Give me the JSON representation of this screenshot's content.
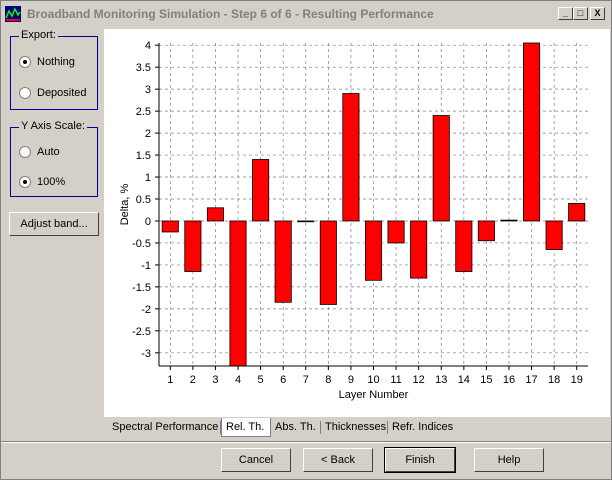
{
  "window": {
    "title": "Broadband Monitoring Simulation - Step 6 of 6 - Resulting Performance",
    "minimize": "_",
    "maximize": "□",
    "close": "X"
  },
  "export_group": {
    "title": "Export:",
    "options": [
      {
        "label": "Nothing",
        "checked": true
      },
      {
        "label": "Deposited",
        "checked": false
      }
    ]
  },
  "yaxis_group": {
    "title": "Y Axis Scale:",
    "options": [
      {
        "label": "Auto",
        "checked": false
      },
      {
        "label": "100%",
        "checked": true
      }
    ]
  },
  "adjust_button": "Adjust band...",
  "tabs": [
    {
      "label": "Spectral Performance",
      "active": false
    },
    {
      "label": "Rel. Th.",
      "active": true
    },
    {
      "label": "Abs. Th.",
      "active": false
    },
    {
      "label": "Thicknesses",
      "active": false
    },
    {
      "label": "Refr. Indices",
      "active": false
    }
  ],
  "buttons": {
    "cancel": "Cancel",
    "back": "< Back",
    "finish": "Finish",
    "help": "Help"
  },
  "chart_data": {
    "type": "bar",
    "xlabel": "Layer Number",
    "ylabel": "Delta, %",
    "categories": [
      "1",
      "2",
      "3",
      "4",
      "5",
      "6",
      "7",
      "8",
      "9",
      "10",
      "11",
      "12",
      "13",
      "14",
      "15",
      "16",
      "17",
      "18",
      "19"
    ],
    "values": [
      -0.25,
      -1.15,
      0.3,
      -3.3,
      1.4,
      -1.85,
      0.0,
      -1.9,
      2.9,
      -1.35,
      -0.5,
      -1.3,
      2.4,
      -1.15,
      -0.45,
      0.02,
      4.05,
      -0.65,
      0.4
    ],
    "ylim": [
      -3.3,
      4.05
    ],
    "yticks": [
      -3,
      -2.5,
      -2,
      -1.5,
      -1,
      -0.5,
      0,
      0.5,
      1,
      1.5,
      2,
      2.5,
      3,
      3.5,
      4
    ],
    "grid": true,
    "bar_color": "#ff0000"
  }
}
